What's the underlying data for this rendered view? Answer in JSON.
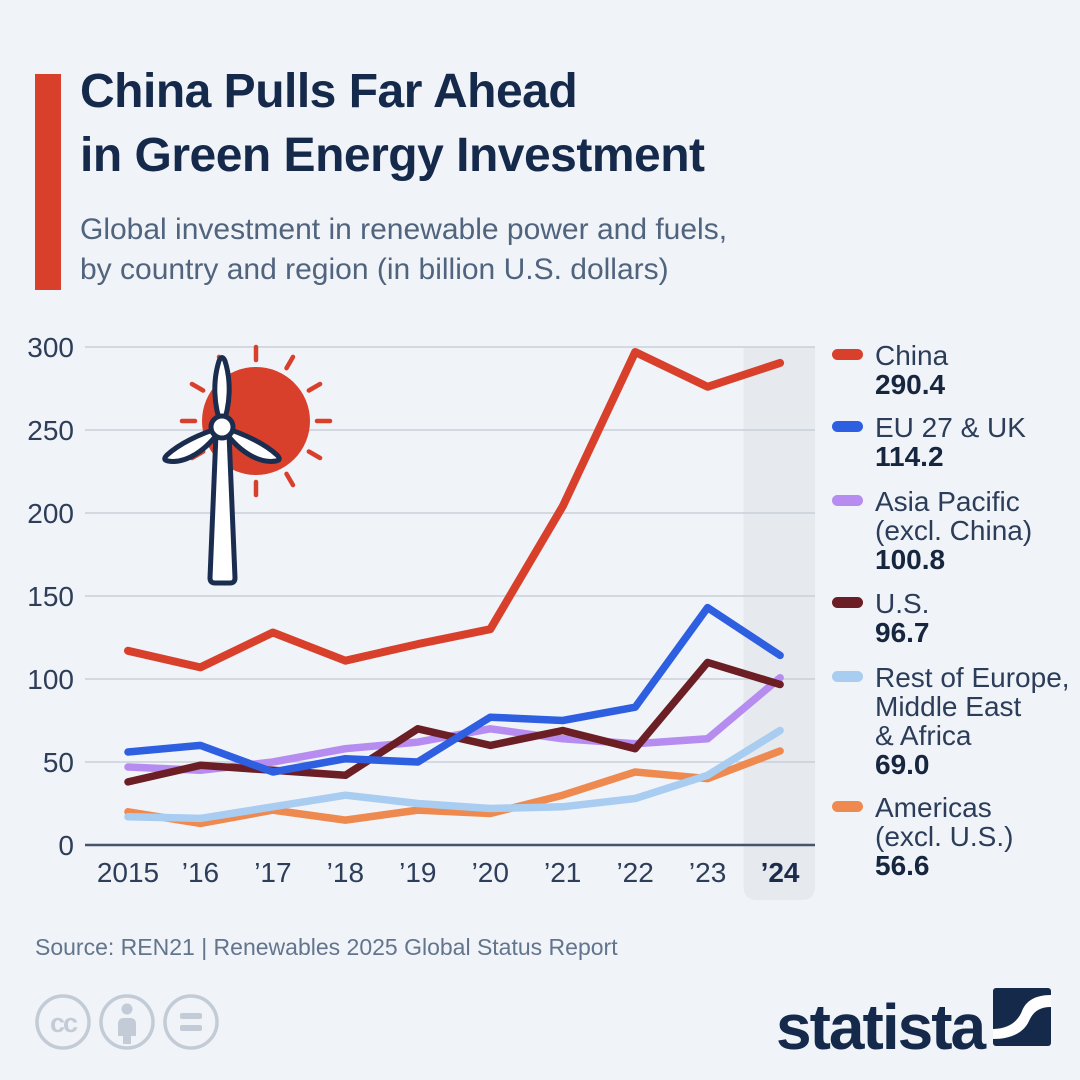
{
  "header": {
    "title_line1": "China Pulls Far Ahead",
    "title_line2": "in Green Energy Investment",
    "subtitle_line1": "Global investment in renewable power and fuels,",
    "subtitle_line2": "by country and region (in billion U.S. dollars)",
    "accent_color": "#d8402c"
  },
  "chart_data": {
    "type": "line",
    "title": "",
    "xlabel": "",
    "ylabel": "billion U.S. dollars",
    "x_labels": [
      "2015",
      "’16",
      "’17",
      "’18",
      "’19",
      "’20",
      "’21",
      "’22",
      "’23",
      "’24"
    ],
    "years": [
      2015,
      2016,
      2017,
      2018,
      2019,
      2020,
      2021,
      2022,
      2023,
      2024
    ],
    "ylim": [
      0,
      300
    ],
    "y_ticks": [
      0,
      50,
      100,
      150,
      200,
      250,
      300
    ],
    "grid": true,
    "legend_position": "right",
    "highlight_last_column": true,
    "series": [
      {
        "name": "China",
        "color": "#d8402c",
        "values": [
          117,
          107,
          128,
          111,
          121,
          130,
          204,
          297,
          276,
          290.4
        ]
      },
      {
        "name": "EU 27 & UK",
        "color": "#2d5fe0",
        "values": [
          56,
          60,
          44,
          52,
          50,
          77,
          75,
          83,
          143,
          114.2
        ]
      },
      {
        "name": "Asia Pacific (excl. China)",
        "color": "#b68cf0",
        "values": [
          47,
          45,
          50,
          58,
          62,
          70,
          64,
          61,
          64,
          100.8
        ]
      },
      {
        "name": "U.S.",
        "color": "#6b1e24",
        "values": [
          38,
          48,
          45,
          42,
          70,
          60,
          69,
          58,
          110,
          96.7
        ]
      },
      {
        "name": "Rest of Europe, Middle East & Africa",
        "color": "#a9ccf1",
        "values": [
          17,
          16,
          23,
          30,
          25,
          22,
          23,
          28,
          42,
          69.0
        ]
      },
      {
        "name": "Americas (excl. U.S.)",
        "color": "#ee8a50",
        "values": [
          20,
          13,
          21,
          15,
          21,
          19,
          30,
          44,
          40,
          56.6
        ]
      }
    ],
    "colors": {
      "background": "#f0f3f8",
      "gridline": "#c9cfd9",
      "axis": "#45536b",
      "tick_label": "#2e3e59",
      "highlight_band": "#e6e9ee"
    }
  },
  "legend": {
    "items": [
      {
        "label_lines": [
          "China"
        ],
        "value": "290.4",
        "color": "#d8402c"
      },
      {
        "label_lines": [
          "EU 27 & UK"
        ],
        "value": "114.2",
        "color": "#2d5fe0"
      },
      {
        "label_lines": [
          "Asia Pacific",
          "(excl. China)"
        ],
        "value": "100.8",
        "color": "#b68cf0"
      },
      {
        "label_lines": [
          "U.S."
        ],
        "value": "96.7",
        "color": "#6b1e24"
      },
      {
        "label_lines": [
          "Rest of Europe,",
          "Middle East",
          "& Africa"
        ],
        "value": "69.0",
        "color": "#a9ccf1"
      },
      {
        "label_lines": [
          "Americas",
          "(excl. U.S.)"
        ],
        "value": "56.6",
        "color": "#ee8a50"
      }
    ]
  },
  "illustration": {
    "name": "wind-turbine-with-sun",
    "sun_color": "#d8402c",
    "outline_color": "#1b2d4f"
  },
  "footer": {
    "source": "Source: REN21 | Renewables 2025 Global Status Report",
    "brand": "statista",
    "license_icons": [
      "cc-icon",
      "attribution-icon",
      "equal-icon"
    ]
  }
}
